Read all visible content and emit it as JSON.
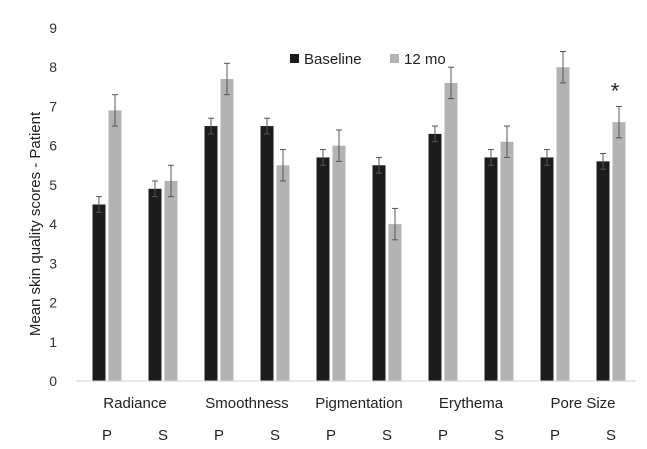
{
  "chart_data": {
    "type": "bar",
    "ylabel": "Mean skin quality scores - Patient",
    "ylim": [
      0,
      9
    ],
    "yticks": [
      0,
      1,
      2,
      3,
      4,
      5,
      6,
      7,
      8,
      9
    ],
    "groups": [
      "Radiance",
      "Smoothness",
      "Pigmentation",
      "Erythema",
      "Pore Size"
    ],
    "categories": [
      "P",
      "S",
      "P",
      "S",
      "P",
      "S",
      "P",
      "S",
      "P",
      "S"
    ],
    "series": [
      {
        "name": "Baseline",
        "color": "#1c1c1c",
        "values": [
          4.5,
          4.9,
          6.5,
          6.5,
          5.7,
          5.5,
          6.3,
          5.7,
          5.7,
          5.6
        ],
        "errors": [
          0.2,
          0.2,
          0.2,
          0.2,
          0.2,
          0.2,
          0.2,
          0.2,
          0.2,
          0.2
        ]
      },
      {
        "name": "12 mo",
        "color": "#b3b3b3",
        "values": [
          6.9,
          5.1,
          7.7,
          5.5,
          6.0,
          4.0,
          7.6,
          6.1,
          8.0,
          6.6
        ],
        "errors": [
          0.4,
          0.4,
          0.4,
          0.4,
          0.4,
          0.4,
          0.4,
          0.4,
          0.4,
          0.4
        ]
      }
    ],
    "annotations": [
      {
        "category_index": 9,
        "text": "*"
      }
    ],
    "grid": false,
    "legend": "top-center"
  }
}
